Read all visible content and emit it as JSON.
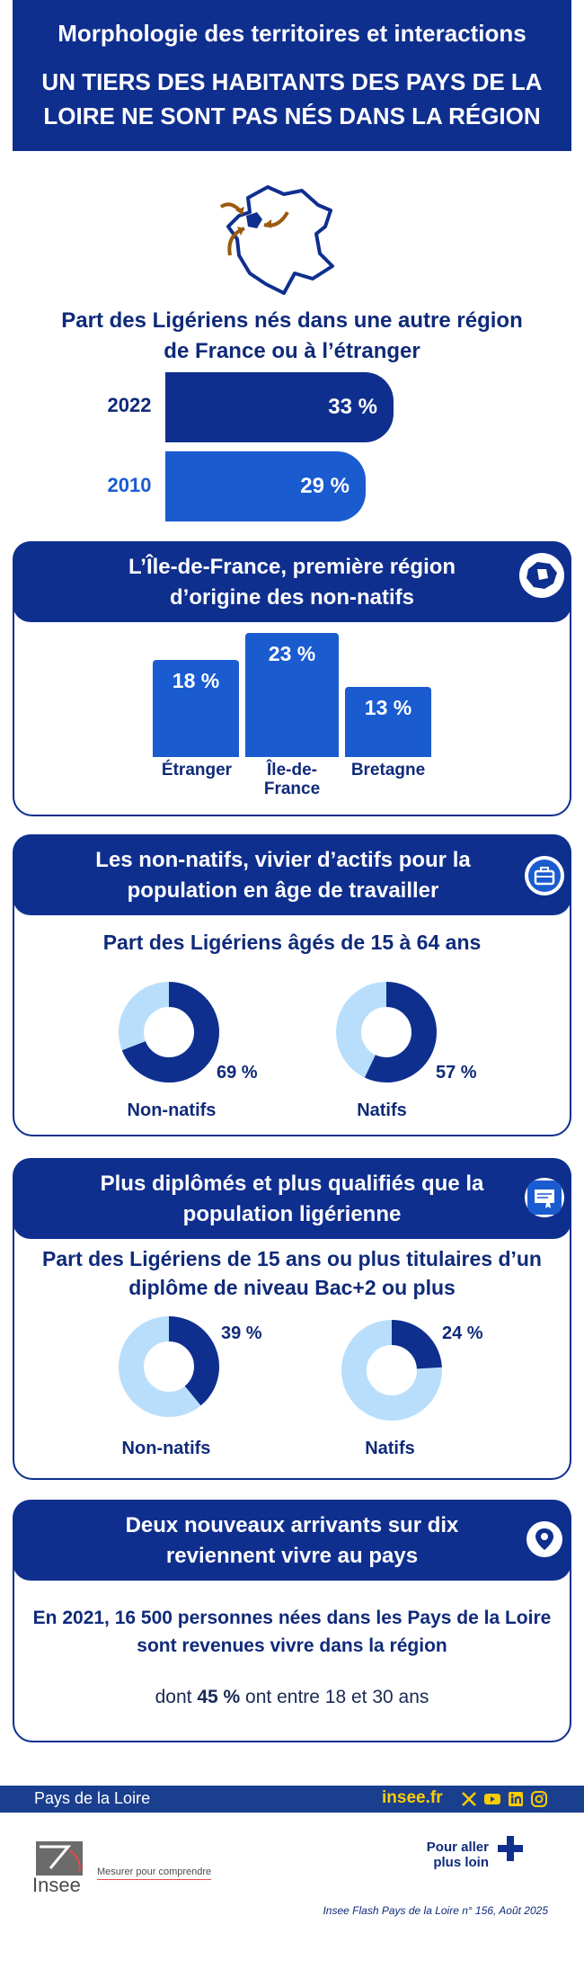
{
  "header": {
    "title": "Morphologie des territoires et interactions",
    "headline": "UN TIERS DES HABITANTS DES  PAYS DE LA LOIRE NE SONT PAS NÉS DANS LA RÉGION"
  },
  "intro": {
    "map_icon": "france-map-arrows-icon",
    "question": "Part des Ligériens nés dans une autre région de France ou à l’étranger",
    "bars": [
      {
        "year": "2022",
        "value": 33,
        "label": "33 %",
        "color": "#0f2f8f"
      },
      {
        "year": "2010",
        "value": 29,
        "label": "29 %",
        "color": "#1a5bd0"
      }
    ]
  },
  "section1": {
    "title": "L’Île-de-France, première région d’origine des non-natifs",
    "icon": "ile-de-france-map-icon",
    "bars": [
      {
        "label": "Étranger",
        "value": 18,
        "text": "18 %"
      },
      {
        "label": "Île-de-France",
        "value": 23,
        "text": "23 %"
      },
      {
        "label": "Bretagne",
        "value": 13,
        "text": "13 %"
      }
    ]
  },
  "section2": {
    "title": "Les non-natifs, vivier d’actifs pour la population en âge de travailler",
    "icon": "briefcase-icon",
    "subtitle": "Part des Ligériens âgés de 15 à 64 ans",
    "donuts": [
      {
        "label": "Non-natifs",
        "value": 69,
        "text": "69 %"
      },
      {
        "label": "Natifs",
        "value": 57,
        "text": "57 %"
      }
    ]
  },
  "section3": {
    "title": "Plus diplômés et plus qualifiés que la population ligérienne",
    "icon": "diploma-icon",
    "subtitle": "Part des Ligériens de 15 ans ou plus titulaires d’un diplôme de niveau Bac+2 ou plus",
    "donuts": [
      {
        "label": "Non-natifs",
        "value": 39,
        "text": "39 %"
      },
      {
        "label": "Natifs",
        "value": 24,
        "text": "24 %"
      }
    ]
  },
  "section4": {
    "title": "Deux nouveaux arrivants sur dix reviennent vivre au pays",
    "icon": "location-pin-icon",
    "body": "En 2021, 16 500 personnes nées dans les Pays de la Loire sont revenues vivre dans la région",
    "detail_prefix": "dont ",
    "detail_value": "45 %",
    "detail_suffix": " ont entre 18 et 30 ans"
  },
  "footer": {
    "region": "Pays de la Loire",
    "site": "insee.fr",
    "social": [
      "x-icon",
      "youtube-icon",
      "linkedin-icon",
      "instagram-icon"
    ],
    "logo_text": "Insee",
    "tagline": "Mesurer pour comprendre",
    "more": "Pour aller plus loin",
    "source": "Insee Flash Pays de la Loire n° 156, Août 2025"
  },
  "colors": {
    "navy": "#0f2f8f",
    "blue": "#1a5bd0",
    "light_blue": "#b9defb",
    "footer_bar": "#1a3f8f",
    "yellow": "#ffcc00"
  }
}
